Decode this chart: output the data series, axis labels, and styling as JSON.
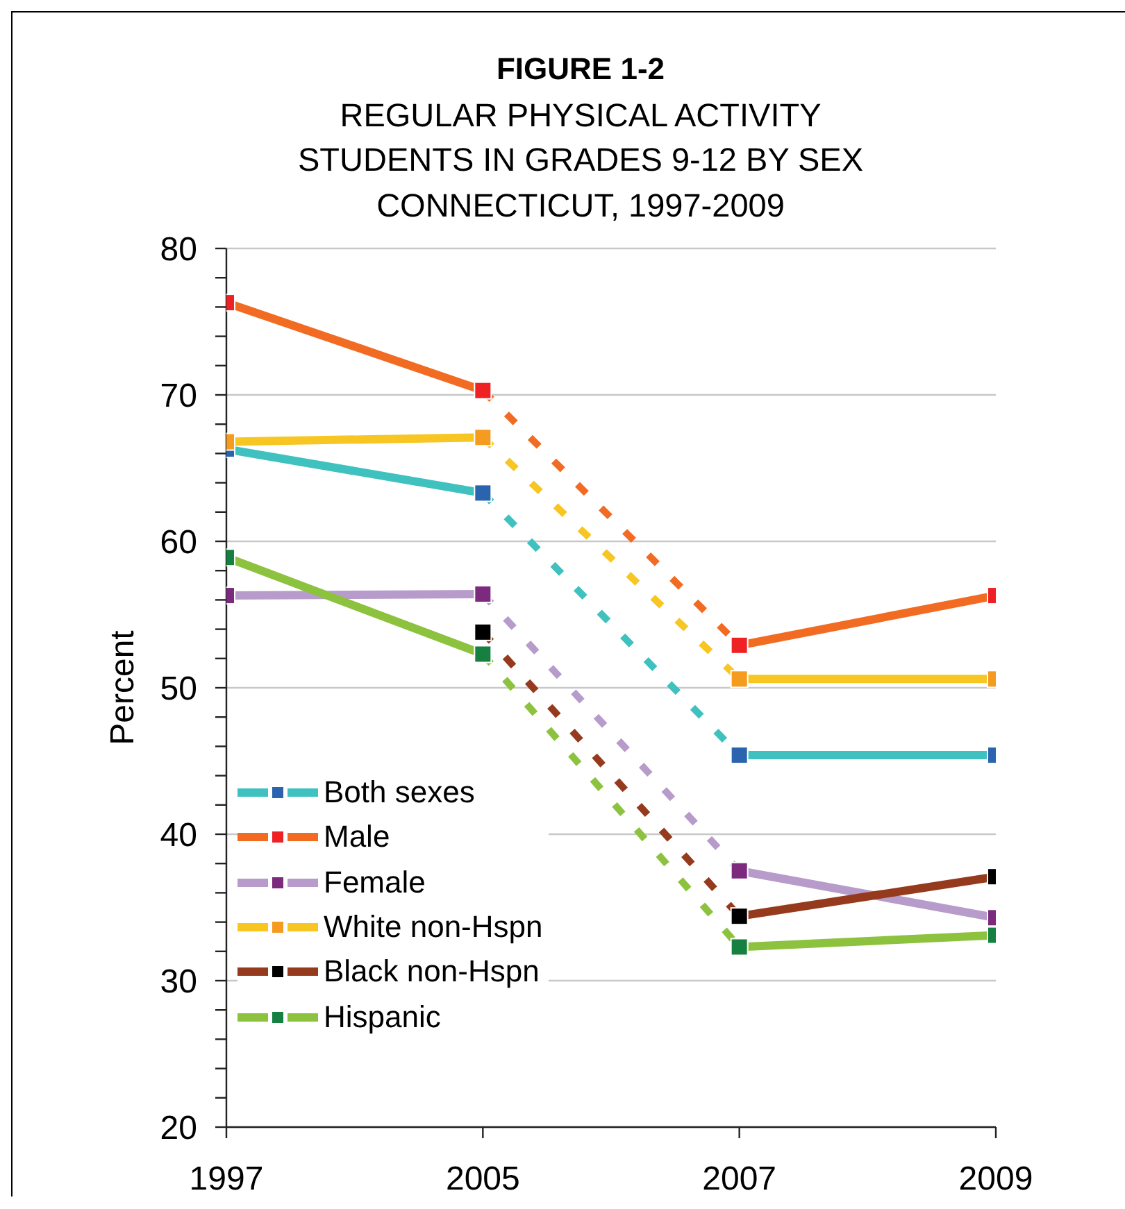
{
  "chart_data": {
    "type": "line",
    "title": "FIGURE 1-2",
    "subtitle": "REGULAR PHYSICAL ACTIVITY\nSTUDENTS IN GRADES 9-12 BY SEX\nCONNECTICUT, 1997-2009",
    "ylabel": "Percent",
    "categories": [
      "1997",
      "2005",
      "2007",
      "2009"
    ],
    "ylim": [
      20,
      80
    ],
    "yticks": [
      20,
      {
        "value": 22,
        "label": null
      },
      {
        "value": 24,
        "label": null
      },
      {
        "value": 26,
        "label": null
      },
      {
        "value": 28,
        "label": null
      },
      30,
      {
        "value": 32,
        "label": null
      },
      {
        "value": 34,
        "label": null
      },
      {
        "value": 36,
        "label": null
      },
      {
        "value": 38,
        "label": null
      },
      40,
      {
        "value": 42,
        "label": null
      },
      {
        "value": 44,
        "label": null
      },
      {
        "value": 46,
        "label": null
      },
      {
        "value": 48,
        "label": null
      },
      50,
      {
        "value": 52,
        "label": null
      },
      {
        "value": 54,
        "label": null
      },
      {
        "value": 56,
        "label": null
      },
      {
        "value": 58,
        "label": null
      },
      60,
      {
        "value": 62,
        "label": null
      },
      {
        "value": 64,
        "label": null
      },
      {
        "value": 66,
        "label": null
      },
      {
        "value": 68,
        "label": null
      },
      70,
      {
        "value": 72,
        "label": null
      },
      {
        "value": 74,
        "label": null
      },
      {
        "value": 76,
        "label": null
      },
      {
        "value": 78,
        "label": null
      },
      80
    ],
    "grid": "y",
    "legend": "left",
    "marker": "square",
    "line_style": "solid",
    "series": [
      {
        "type": "line",
        "color": "#3fc1c0",
        "marker": "none",
        "values": [
          66.3,
          63.3,
          null,
          null
        ]
      },
      {
        "type": "line",
        "color": "#3fc1c0",
        "marker": "none",
        "line_style": "dashed",
        "values": [
          null,
          63.3,
          45.4,
          null
        ]
      },
      {
        "name": "Both sexes",
        "type": "line",
        "color": "#3fc1c0",
        "marker": "none",
        "values": [
          null,
          null,
          45.4,
          45.4
        ]
      },
      {
        "type": "scatter",
        "color": "#2a63ae",
        "values": [
          66.3,
          63.3,
          45.4,
          45.4
        ]
      },
      {
        "type": "line",
        "color": "#f26b22",
        "marker": "none",
        "values": [
          76.3,
          70.3,
          null,
          null
        ]
      },
      {
        "type": "line",
        "color": "#f26b22",
        "marker": "none",
        "line_style": "dashed",
        "values": [
          null,
          70.3,
          52.9,
          null
        ]
      },
      {
        "name": "Male",
        "type": "line",
        "color": "#f26b22",
        "marker": "none",
        "values": [
          null,
          null,
          52.9,
          56.3
        ]
      },
      {
        "type": "scatter",
        "color": "#ee2225",
        "values": [
          76.3,
          70.3,
          52.9,
          56.3
        ]
      },
      {
        "type": "line",
        "color": "#b79bcb",
        "marker": "none",
        "values": [
          56.3,
          56.4,
          null,
          null
        ]
      },
      {
        "type": "line",
        "color": "#b79bcb",
        "marker": "none",
        "line_style": "dashed",
        "values": [
          null,
          56.4,
          37.5,
          null
        ]
      },
      {
        "name": "Female",
        "type": "line",
        "color": "#b79bcb",
        "marker": "none",
        "values": [
          null,
          null,
          37.5,
          34.3
        ]
      },
      {
        "type": "scatter",
        "color": "#7b2a7e",
        "values": [
          56.3,
          56.4,
          37.5,
          34.3
        ]
      },
      {
        "type": "line",
        "color": "#f7c622",
        "marker": "none",
        "values": [
          66.8,
          67.1,
          null,
          null
        ]
      },
      {
        "type": "line",
        "color": "#f7c622",
        "marker": "none",
        "line_style": "dashed",
        "values": [
          null,
          67.1,
          50.6,
          null
        ]
      },
      {
        "name": "White non-Hspn",
        "type": "line",
        "color": "#f7c622",
        "marker": "none",
        "values": [
          null,
          null,
          50.6,
          50.6
        ]
      },
      {
        "type": "scatter",
        "color": "#f49b20",
        "values": [
          66.8,
          67.1,
          50.6,
          50.6
        ]
      },
      {
        "type": "line",
        "color": "#963a1e",
        "marker": "none",
        "line_style": "dashed",
        "values": [
          null,
          53.8,
          34.4,
          null
        ]
      },
      {
        "name": "Black non-Hspn",
        "type": "line",
        "color": "#963a1e",
        "marker": "none",
        "values": [
          null,
          null,
          34.4,
          37.1
        ]
      },
      {
        "type": "scatter",
        "color": "#000000",
        "values": [
          null,
          53.8,
          34.4,
          37.1
        ]
      },
      {
        "type": "line",
        "color": "#8dc23f",
        "marker": "none",
        "values": [
          58.9,
          52.3,
          null,
          null
        ]
      },
      {
        "type": "line",
        "color": "#8dc23f",
        "marker": "none",
        "line_style": "dashed",
        "values": [
          null,
          52.3,
          32.3,
          null
        ]
      },
      {
        "name": "Hispanic",
        "type": "line",
        "color": "#8dc23f",
        "marker": "none",
        "values": [
          null,
          null,
          32.3,
          33.1
        ]
      },
      {
        "type": "scatter",
        "color": "#15803f",
        "values": [
          58.9,
          52.3,
          32.3,
          33.1
        ]
      }
    ]
  }
}
